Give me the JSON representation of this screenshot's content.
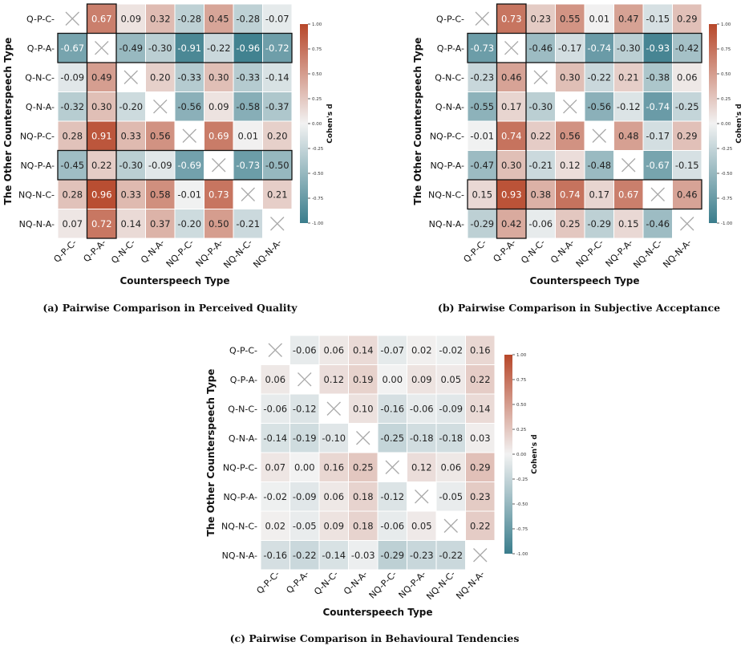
{
  "chart_data": [
    {
      "type": "heatmap",
      "caption": "(a) Pairwise Comparison in Perceived Quality",
      "xlabel": "Counterspeech Type",
      "ylabel": "The Other Counterspeech Type",
      "x_categories": [
        "Q-P-C",
        "Q-P-A",
        "Q-N-C",
        "Q-N-A",
        "NQ-P-C",
        "NQ-P-A",
        "NQ-N-C",
        "NQ-N-A"
      ],
      "y_categories": [
        "Q-P-C",
        "Q-P-A",
        "Q-N-C",
        "Q-N-A",
        "NQ-P-C",
        "NQ-P-A",
        "NQ-N-C",
        "NQ-N-A"
      ],
      "values": [
        [
          null,
          0.67,
          0.09,
          0.32,
          -0.28,
          0.45,
          -0.28,
          -0.07
        ],
        [
          -0.67,
          null,
          -0.49,
          -0.3,
          -0.91,
          -0.22,
          -0.96,
          -0.72
        ],
        [
          -0.09,
          0.49,
          null,
          0.2,
          -0.33,
          0.3,
          -0.33,
          -0.14
        ],
        [
          -0.32,
          0.3,
          -0.2,
          null,
          -0.56,
          0.09,
          -0.58,
          -0.37
        ],
        [
          0.28,
          0.91,
          0.33,
          0.56,
          null,
          0.69,
          0.01,
          0.2
        ],
        [
          -0.45,
          0.22,
          -0.3,
          -0.09,
          -0.69,
          null,
          -0.73,
          -0.5
        ],
        [
          0.28,
          0.96,
          0.33,
          0.58,
          -0.01,
          0.73,
          null,
          0.21
        ],
        [
          0.07,
          0.72,
          0.14,
          0.37,
          -0.2,
          0.5,
          -0.21,
          null
        ]
      ],
      "highlighted_rows": [
        1,
        5
      ],
      "highlighted_cols": [
        1
      ],
      "colorbar": {
        "label": "Cohen's d",
        "range": [
          -1.0,
          1.0
        ],
        "ticks": [
          "1.00",
          "0.75",
          "0.50",
          "0.25",
          "0.00",
          "-0.25",
          "-0.50",
          "-0.75",
          "-1.00"
        ]
      }
    },
    {
      "type": "heatmap",
      "caption": "(b) Pairwise Comparison in Subjective Acceptance",
      "xlabel": "Counterspeech Type",
      "ylabel": "The Other Counterspeech Type",
      "x_categories": [
        "Q-P-C",
        "Q-P-A",
        "Q-N-C",
        "Q-N-A",
        "NQ-P-C",
        "NQ-P-A",
        "NQ-N-C",
        "NQ-N-A"
      ],
      "y_categories": [
        "Q-P-C",
        "Q-P-A",
        "Q-N-C",
        "Q-N-A",
        "NQ-P-C",
        "NQ-P-A",
        "NQ-N-C",
        "NQ-N-A"
      ],
      "values": [
        [
          null,
          0.73,
          0.23,
          0.55,
          0.01,
          0.47,
          -0.15,
          0.29
        ],
        [
          -0.73,
          null,
          -0.46,
          -0.17,
          -0.74,
          -0.3,
          -0.93,
          -0.42
        ],
        [
          -0.23,
          0.46,
          null,
          0.3,
          -0.22,
          0.21,
          -0.38,
          0.06
        ],
        [
          -0.55,
          0.17,
          -0.3,
          null,
          -0.56,
          -0.12,
          -0.74,
          -0.25
        ],
        [
          -0.01,
          0.74,
          0.22,
          0.56,
          null,
          0.48,
          -0.17,
          0.29
        ],
        [
          -0.47,
          0.3,
          -0.21,
          0.12,
          -0.48,
          null,
          -0.67,
          -0.15
        ],
        [
          0.15,
          0.93,
          0.38,
          0.74,
          0.17,
          0.67,
          null,
          0.46
        ],
        [
          -0.29,
          0.42,
          -0.06,
          0.25,
          -0.29,
          0.15,
          -0.46,
          null
        ]
      ],
      "highlighted_rows": [
        1,
        6
      ],
      "highlighted_cols": [
        1
      ],
      "colorbar": {
        "label": "Cohen's d",
        "range": [
          -1.0,
          1.0
        ],
        "ticks": [
          "1.00",
          "0.75",
          "0.50",
          "0.25",
          "0.00",
          "-0.25",
          "-0.50",
          "-0.75",
          "-1.00"
        ]
      }
    },
    {
      "type": "heatmap",
      "caption": "(c) Pairwise Comparison in Behavioural Tendencies",
      "xlabel": "Counterspeech Type",
      "ylabel": "The Other Counterspeech Type",
      "x_categories": [
        "Q-P-C",
        "Q-P-A",
        "Q-N-C",
        "Q-N-A",
        "NQ-P-C",
        "NQ-P-A",
        "NQ-N-C",
        "NQ-N-A"
      ],
      "y_categories": [
        "Q-P-C",
        "Q-P-A",
        "Q-N-C",
        "Q-N-A",
        "NQ-P-C",
        "NQ-P-A",
        "NQ-N-C",
        "NQ-N-A"
      ],
      "values": [
        [
          null,
          -0.06,
          0.06,
          0.14,
          -0.07,
          0.02,
          -0.02,
          0.16
        ],
        [
          0.06,
          null,
          0.12,
          0.19,
          0.0,
          0.09,
          0.05,
          0.22
        ],
        [
          -0.06,
          -0.12,
          null,
          0.1,
          -0.16,
          -0.06,
          -0.09,
          0.14
        ],
        [
          -0.14,
          -0.19,
          -0.1,
          null,
          -0.25,
          -0.18,
          -0.18,
          0.03
        ],
        [
          0.07,
          0.0,
          0.16,
          0.25,
          null,
          0.12,
          0.06,
          0.29
        ],
        [
          -0.02,
          -0.09,
          0.06,
          0.18,
          -0.12,
          null,
          -0.05,
          0.23
        ],
        [
          0.02,
          -0.05,
          0.09,
          0.18,
          -0.06,
          0.05,
          null,
          0.22
        ],
        [
          -0.16,
          -0.22,
          -0.14,
          -0.03,
          -0.29,
          -0.23,
          -0.22,
          null
        ]
      ],
      "highlighted_rows": [],
      "highlighted_cols": [],
      "colorbar": {
        "label": "Cohen's d",
        "range": [
          -1.0,
          1.0
        ],
        "ticks": [
          "1.00",
          "0.75",
          "0.50",
          "0.25",
          "0.00",
          "-0.25",
          "-0.50",
          "-0.75",
          "-1.00"
        ]
      }
    }
  ]
}
